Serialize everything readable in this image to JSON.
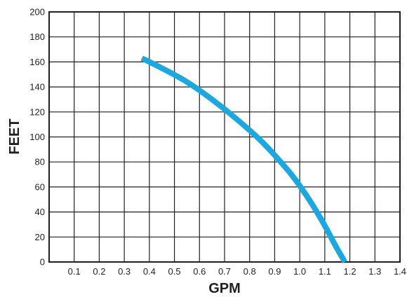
{
  "chart_data": {
    "type": "line",
    "title": "",
    "xlabel": "GPM",
    "ylabel": "FEET",
    "xlim": [
      0,
      1.4
    ],
    "ylim": [
      0,
      200
    ],
    "x_ticks": [
      "0.1",
      "0.2",
      "0.3",
      "0.4",
      "0.5",
      "0.6",
      "0.7",
      "0.8",
      "0.9",
      "1.0",
      "1.1",
      "1.2",
      "1.3",
      "1.4"
    ],
    "y_ticks": [
      "0",
      "20",
      "40",
      "60",
      "80",
      "100",
      "120",
      "140",
      "160",
      "180",
      "200"
    ],
    "grid": true,
    "legend": "none",
    "series": [
      {
        "color": "#1ba8e0",
        "x": [
          0.37,
          0.45,
          0.55,
          0.65,
          0.75,
          0.85,
          0.95,
          1.0,
          1.05,
          1.1,
          1.14,
          1.18
        ],
        "y": [
          163,
          155,
          144,
          130,
          114,
          96,
          74,
          61,
          46,
          29,
          14,
          0
        ]
      }
    ]
  }
}
